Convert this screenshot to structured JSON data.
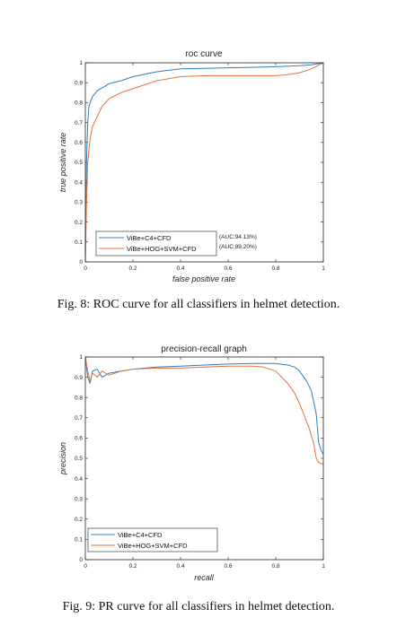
{
  "captions": {
    "fig8": "Fig. 8: ROC curve for all classifiers in helmet detection.",
    "fig9": "Fig. 9: PR curve for all classifiers in helmet detection."
  },
  "colors": {
    "series1": "#2f7fc1",
    "series2": "#e8703a"
  },
  "chart_data": [
    {
      "type": "line",
      "title": "roc curve",
      "xlabel": "false positive rate",
      "ylabel": "true positive rate",
      "xlim": [
        0,
        1
      ],
      "ylim": [
        0,
        1
      ],
      "xticks": [
        "0",
        "0.2",
        "0.4",
        "0.6",
        "0.8",
        "1"
      ],
      "yticks": [
        "0",
        "0.1",
        "0.2",
        "0.3",
        "0.4",
        "0.5",
        "0.6",
        "0.7",
        "0.8",
        "0.9",
        "1"
      ],
      "grid": false,
      "legend_position": "bottom-left",
      "annotations": [
        "(AUC:94.13%)",
        "(AUC:89.20%)"
      ],
      "series": [
        {
          "name": "ViBe+C4+CFD",
          "x": [
            0,
            0.005,
            0.01,
            0.015,
            0.02,
            0.03,
            0.05,
            0.08,
            0.1,
            0.15,
            0.2,
            0.3,
            0.4,
            0.5,
            0.6,
            0.7,
            0.8,
            0.9,
            0.95,
            1
          ],
          "y": [
            0,
            0.5,
            0.7,
            0.78,
            0.8,
            0.83,
            0.86,
            0.88,
            0.895,
            0.91,
            0.93,
            0.955,
            0.97,
            0.972,
            0.975,
            0.977,
            0.98,
            0.985,
            0.99,
            1
          ]
        },
        {
          "name": "ViBe+HOG+SVM+CFD",
          "x": [
            0,
            0.005,
            0.01,
            0.02,
            0.03,
            0.05,
            0.07,
            0.1,
            0.15,
            0.2,
            0.3,
            0.4,
            0.5,
            0.6,
            0.7,
            0.8,
            0.85,
            0.9,
            0.95,
            1
          ],
          "y": [
            0,
            0.3,
            0.5,
            0.62,
            0.68,
            0.73,
            0.78,
            0.82,
            0.85,
            0.87,
            0.91,
            0.93,
            0.935,
            0.935,
            0.935,
            0.935,
            0.94,
            0.95,
            0.97,
            1
          ]
        }
      ]
    },
    {
      "type": "line",
      "title": "precision-recall graph",
      "xlabel": "recall",
      "ylabel": "precision",
      "xlim": [
        0,
        1
      ],
      "ylim": [
        0,
        1
      ],
      "xticks": [
        "0",
        "0.2",
        "0.4",
        "0.6",
        "0.8",
        "1"
      ],
      "yticks": [
        "0",
        "0.1",
        "0.2",
        "0.3",
        "0.4",
        "0.5",
        "0.6",
        "0.7",
        "0.8",
        "0.9",
        "1"
      ],
      "grid": false,
      "legend_position": "bottom-left",
      "series": [
        {
          "name": "ViBe+C4+CFD",
          "x": [
            0,
            0.01,
            0.02,
            0.03,
            0.05,
            0.07,
            0.1,
            0.15,
            0.2,
            0.3,
            0.4,
            0.5,
            0.6,
            0.7,
            0.8,
            0.85,
            0.88,
            0.9,
            0.93,
            0.95,
            0.97,
            0.98,
            0.99,
            1
          ],
          "y": [
            1,
            0.9,
            0.87,
            0.93,
            0.94,
            0.9,
            0.92,
            0.93,
            0.94,
            0.95,
            0.955,
            0.96,
            0.965,
            0.968,
            0.968,
            0.96,
            0.95,
            0.93,
            0.88,
            0.83,
            0.72,
            0.58,
            0.54,
            0.52
          ]
        },
        {
          "name": "ViBe+HOG+SVM+CFD",
          "x": [
            0,
            0.01,
            0.02,
            0.03,
            0.05,
            0.07,
            0.1,
            0.15,
            0.2,
            0.3,
            0.4,
            0.5,
            0.6,
            0.7,
            0.75,
            0.8,
            0.85,
            0.88,
            0.9,
            0.92,
            0.94,
            0.96,
            0.97,
            0.98,
            1
          ],
          "y": [
            1,
            0.93,
            0.88,
            0.92,
            0.9,
            0.93,
            0.91,
            0.93,
            0.94,
            0.945,
            0.945,
            0.95,
            0.955,
            0.955,
            0.95,
            0.93,
            0.87,
            0.82,
            0.77,
            0.71,
            0.65,
            0.57,
            0.5,
            0.48,
            0.47
          ]
        }
      ]
    }
  ]
}
